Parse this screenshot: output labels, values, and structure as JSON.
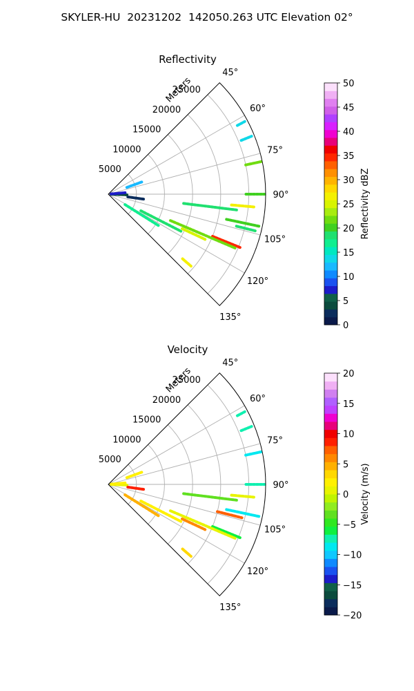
{
  "title": "SKYLER-HU  20231202  142050.263 UTC Elevation 02°",
  "chart_data": [
    {
      "type": "polar-sector",
      "title": "Reflectivity",
      "radial_axis_label": "Meters",
      "radial_range": [
        0,
        28000
      ],
      "radial_ticks": [
        5000,
        10000,
        15000,
        20000,
        25000
      ],
      "radial_tick_labels": [
        "5000",
        "10000",
        "15000",
        "20000",
        "25000"
      ],
      "azimuth_range_deg": [
        45,
        135
      ],
      "azimuth_ticks": [
        45,
        60,
        75,
        90,
        105,
        120,
        135
      ],
      "azimuth_tick_labels": [
        "45°",
        "60°",
        "75°",
        "90°",
        "105°",
        "120°",
        "135°"
      ],
      "grid": true,
      "colorbar": {
        "label": "Reflectivity dBZ",
        "range": [
          0,
          50
        ],
        "ticks": [
          0,
          5,
          10,
          15,
          20,
          25,
          30,
          35,
          40,
          45,
          50
        ],
        "tick_labels": [
          "0",
          "5",
          "10",
          "15",
          "20",
          "25",
          "30",
          "35",
          "40",
          "45",
          "50"
        ],
        "colors": [
          "#0a1a4a",
          "#0b2d5c",
          "#0b4b3d",
          "#106048",
          "#1c1cc9",
          "#1a52f0",
          "#0f8aff",
          "#19b9ff",
          "#10d8e8",
          "#00e8c0",
          "#10ee90",
          "#20e070",
          "#40d020",
          "#70dc10",
          "#a8ec10",
          "#d8f400",
          "#f4f000",
          "#ffd800",
          "#ffb400",
          "#ff9000",
          "#ff6000",
          "#ff2800",
          "#f00000",
          "#e8007a",
          "#f000d0",
          "#d820ff",
          "#b040ff",
          "#d060e8",
          "#e080f0",
          "#f0b0f4",
          "#fce0fc"
        ]
      },
      "echoes": [
        {
          "az": 90,
          "r": [
            24500,
            27800
          ],
          "value": 20
        },
        {
          "az": 97,
          "r": [
            13500,
            23000
          ],
          "value": 19
        },
        {
          "az": 102,
          "r": [
            21500,
            27500
          ],
          "value": 20
        },
        {
          "az": 104,
          "r": [
            23500,
            27000
          ],
          "value": 18
        },
        {
          "az": 112,
          "r": [
            20000,
            25500
          ],
          "value": 34
        },
        {
          "az": 113,
          "r": [
            12000,
            24500
          ],
          "value": 21
        },
        {
          "az": 117,
          "r": [
            6500,
            14500
          ],
          "value": 18
        },
        {
          "az": 122,
          "r": [
            3500,
            10500
          ],
          "value": 17
        },
        {
          "az": 115,
          "r": [
            14500,
            19000
          ],
          "value": 25
        },
        {
          "az": 70,
          "r": [
            3500,
            6500
          ],
          "value": 12
        },
        {
          "az": 92,
          "r": [
            500,
            3500
          ],
          "value": 4
        },
        {
          "az": 85,
          "r": [
            500,
            3000
          ],
          "value": 8
        },
        {
          "az": 98,
          "r": [
            3500,
            6500
          ],
          "value": 3
        },
        {
          "az": 131,
          "r": [
            17500,
            19500
          ],
          "value": 27
        },
        {
          "az": 68,
          "r": [
            25500,
            27500
          ],
          "value": 14
        },
        {
          "az": 62,
          "r": [
            26000,
            27500
          ],
          "value": 14
        },
        {
          "az": 78,
          "r": [
            25000,
            27800
          ],
          "value": 22
        },
        {
          "az": 95,
          "r": [
            22000,
            26000
          ],
          "value": 27
        }
      ]
    },
    {
      "type": "polar-sector",
      "title": "Velocity",
      "radial_axis_label": "Meters",
      "radial_range": [
        0,
        28000
      ],
      "radial_ticks": [
        5000,
        10000,
        15000,
        20000,
        25000
      ],
      "radial_tick_labels": [
        "5000",
        "10000",
        "15000",
        "20000",
        "25000"
      ],
      "azimuth_range_deg": [
        45,
        135
      ],
      "azimuth_ticks": [
        45,
        60,
        75,
        90,
        105,
        120,
        135
      ],
      "azimuth_tick_labels": [
        "45°",
        "60°",
        "75°",
        "90°",
        "105°",
        "120°",
        "135°"
      ],
      "grid": true,
      "colorbar": {
        "label": "Velocity (m/s)",
        "range": [
          -20,
          20
        ],
        "ticks": [
          -20,
          -15,
          -10,
          -5,
          0,
          5,
          10,
          15,
          20
        ],
        "tick_labels": [
          "−20",
          "−15",
          "−10",
          "−5",
          "0",
          "5",
          "10",
          "15",
          "20"
        ],
        "colors": [
          "#0a1a4a",
          "#0b2d5c",
          "#0b4b3d",
          "#106048",
          "#1c1cc9",
          "#1a52f0",
          "#0f8aff",
          "#10c8ff",
          "#00e8f0",
          "#10f0b0",
          "#10f040",
          "#30e820",
          "#60e020",
          "#90ec20",
          "#c0f400",
          "#e8f400",
          "#fff000",
          "#ffd800",
          "#ffb000",
          "#ff8800",
          "#ff6000",
          "#ff2000",
          "#f00000",
          "#e8007a",
          "#f000d0",
          "#c040ff",
          "#b060ff",
          "#d080f0",
          "#f0b0f4",
          "#fce0fc"
        ]
      },
      "echoes": [
        {
          "az": 90,
          "r": [
            24500,
            27800
          ],
          "value": -8
        },
        {
          "az": 97,
          "r": [
            13500,
            23000
          ],
          "value": -4
        },
        {
          "az": 102,
          "r": [
            21500,
            27500
          ],
          "value": -9
        },
        {
          "az": 104,
          "r": [
            20000,
            24500
          ],
          "value": 7
        },
        {
          "az": 112,
          "r": [
            20000,
            25500
          ],
          "value": -6
        },
        {
          "az": 113,
          "r": [
            12000,
            24500
          ],
          "value": 1
        },
        {
          "az": 117,
          "r": [
            6500,
            14500
          ],
          "value": 2
        },
        {
          "az": 122,
          "r": [
            3500,
            10500
          ],
          "value": 4
        },
        {
          "az": 115,
          "r": [
            14500,
            19000
          ],
          "value": 6
        },
        {
          "az": 70,
          "r": [
            3500,
            6500
          ],
          "value": 2
        },
        {
          "az": 92,
          "r": [
            500,
            3500
          ],
          "value": 1
        },
        {
          "az": 85,
          "r": [
            500,
            3000
          ],
          "value": 2
        },
        {
          "az": 98,
          "r": [
            3500,
            6500
          ],
          "value": 8
        },
        {
          "az": 131,
          "r": [
            17500,
            19500
          ],
          "value": 3
        },
        {
          "az": 68,
          "r": [
            25500,
            27500
          ],
          "value": -7
        },
        {
          "az": 62,
          "r": [
            26000,
            27500
          ],
          "value": -8
        },
        {
          "az": 78,
          "r": [
            25000,
            27800
          ],
          "value": -9
        },
        {
          "az": 95,
          "r": [
            22000,
            26000
          ],
          "value": 1
        }
      ]
    }
  ]
}
